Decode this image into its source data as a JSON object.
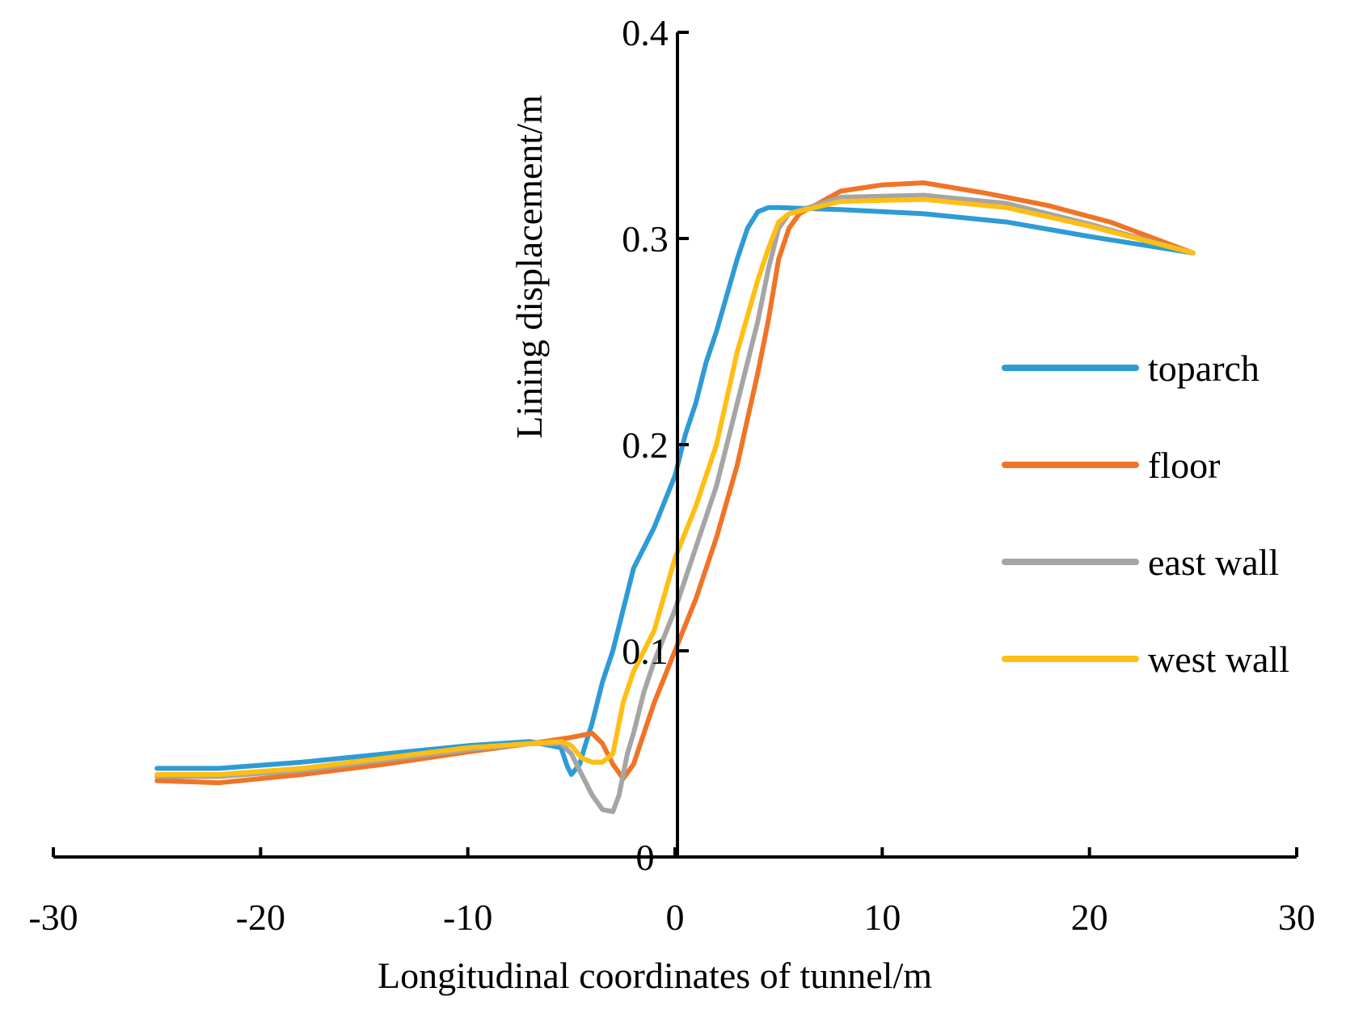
{
  "chart_data": {
    "type": "line",
    "title": "",
    "xlabel": "Longitudinal  coordinates of tunnel/m",
    "ylabel": "Lining  displacement/m",
    "xlim": [
      -30,
      30
    ],
    "ylim": [
      0,
      0.4
    ],
    "x_ticks": [
      "-30",
      "-20",
      "-10",
      "0",
      "10",
      "20",
      "30"
    ],
    "x_tick_values": [
      -30,
      -20,
      -10,
      0,
      10,
      20,
      30
    ],
    "y_ticks": [
      "0",
      "0.1",
      "0.2",
      "0.3",
      "0.4"
    ],
    "y_tick_values": [
      0,
      0.1,
      0.2,
      0.3,
      0.4
    ],
    "grid": false,
    "legend_position": "right",
    "series": [
      {
        "name": "toparch",
        "color": "#2E9BD6",
        "points": [
          [
            -25,
            0.043
          ],
          [
            -22,
            0.043
          ],
          [
            -18,
            0.046
          ],
          [
            -14,
            0.05
          ],
          [
            -10,
            0.054
          ],
          [
            -7,
            0.056
          ],
          [
            -5.5,
            0.053
          ],
          [
            -5.2,
            0.044
          ],
          [
            -5.0,
            0.04
          ],
          [
            -4.6,
            0.045
          ],
          [
            -4.4,
            0.052
          ],
          [
            -4.0,
            0.065
          ],
          [
            -3.5,
            0.085
          ],
          [
            -3,
            0.1
          ],
          [
            -2.5,
            0.12
          ],
          [
            -2,
            0.14
          ],
          [
            -1,
            0.16
          ],
          [
            0,
            0.185
          ],
          [
            0.5,
            0.205
          ],
          [
            1,
            0.22
          ],
          [
            1.5,
            0.24
          ],
          [
            2,
            0.255
          ],
          [
            3,
            0.29
          ],
          [
            3.5,
            0.305
          ],
          [
            4,
            0.313
          ],
          [
            4.5,
            0.315
          ],
          [
            5,
            0.315
          ],
          [
            8,
            0.314
          ],
          [
            12,
            0.312
          ],
          [
            16,
            0.308
          ],
          [
            20,
            0.301
          ],
          [
            25,
            0.293
          ]
        ]
      },
      {
        "name": "floor",
        "color": "#F07427",
        "points": [
          [
            -25,
            0.037
          ],
          [
            -22,
            0.036
          ],
          [
            -18,
            0.04
          ],
          [
            -14,
            0.045
          ],
          [
            -10,
            0.051
          ],
          [
            -7,
            0.055
          ],
          [
            -5,
            0.058
          ],
          [
            -4,
            0.06
          ],
          [
            -3.5,
            0.055
          ],
          [
            -3,
            0.045
          ],
          [
            -2.5,
            0.038
          ],
          [
            -2,
            0.045
          ],
          [
            -1.5,
            0.06
          ],
          [
            -1,
            0.075
          ],
          [
            0,
            0.1
          ],
          [
            1,
            0.125
          ],
          [
            2,
            0.155
          ],
          [
            3,
            0.19
          ],
          [
            4,
            0.235
          ],
          [
            4.5,
            0.26
          ],
          [
            5,
            0.29
          ],
          [
            5.5,
            0.305
          ],
          [
            6,
            0.312
          ],
          [
            8,
            0.323
          ],
          [
            10,
            0.326
          ],
          [
            12,
            0.327
          ],
          [
            15,
            0.322
          ],
          [
            18,
            0.316
          ],
          [
            21,
            0.308
          ],
          [
            25,
            0.293
          ]
        ]
      },
      {
        "name": "east wall",
        "color": "#A5A5A5",
        "points": [
          [
            -25,
            0.039
          ],
          [
            -22,
            0.039
          ],
          [
            -18,
            0.042
          ],
          [
            -14,
            0.047
          ],
          [
            -10,
            0.052
          ],
          [
            -7,
            0.055
          ],
          [
            -5.5,
            0.055
          ],
          [
            -5,
            0.05
          ],
          [
            -4.5,
            0.04
          ],
          [
            -4,
            0.03
          ],
          [
            -3.5,
            0.023
          ],
          [
            -3,
            0.022
          ],
          [
            -2.7,
            0.03
          ],
          [
            -2.3,
            0.05
          ],
          [
            -2,
            0.06
          ],
          [
            -1.5,
            0.08
          ],
          [
            -1,
            0.095
          ],
          [
            0,
            0.12
          ],
          [
            1,
            0.15
          ],
          [
            2,
            0.18
          ],
          [
            3,
            0.22
          ],
          [
            4,
            0.26
          ],
          [
            4.5,
            0.285
          ],
          [
            5,
            0.305
          ],
          [
            5.5,
            0.312
          ],
          [
            8,
            0.32
          ],
          [
            12,
            0.321
          ],
          [
            16,
            0.317
          ],
          [
            20,
            0.307
          ],
          [
            25,
            0.293
          ]
        ]
      },
      {
        "name": "west wall",
        "color": "#FFBE13",
        "points": [
          [
            -25,
            0.04
          ],
          [
            -22,
            0.04
          ],
          [
            -18,
            0.043
          ],
          [
            -14,
            0.048
          ],
          [
            -10,
            0.053
          ],
          [
            -7,
            0.055
          ],
          [
            -5.5,
            0.056
          ],
          [
            -5,
            0.054
          ],
          [
            -4.5,
            0.048
          ],
          [
            -4,
            0.046
          ],
          [
            -3.5,
            0.046
          ],
          [
            -3,
            0.05
          ],
          [
            -2.5,
            0.075
          ],
          [
            -2,
            0.09
          ],
          [
            -1,
            0.11
          ],
          [
            0,
            0.145
          ],
          [
            1,
            0.17
          ],
          [
            2,
            0.2
          ],
          [
            3,
            0.245
          ],
          [
            4,
            0.28
          ],
          [
            4.5,
            0.295
          ],
          [
            5,
            0.308
          ],
          [
            5.5,
            0.312
          ],
          [
            8,
            0.318
          ],
          [
            12,
            0.319
          ],
          [
            16,
            0.315
          ],
          [
            20,
            0.306
          ],
          [
            25,
            0.293
          ]
        ]
      }
    ]
  }
}
